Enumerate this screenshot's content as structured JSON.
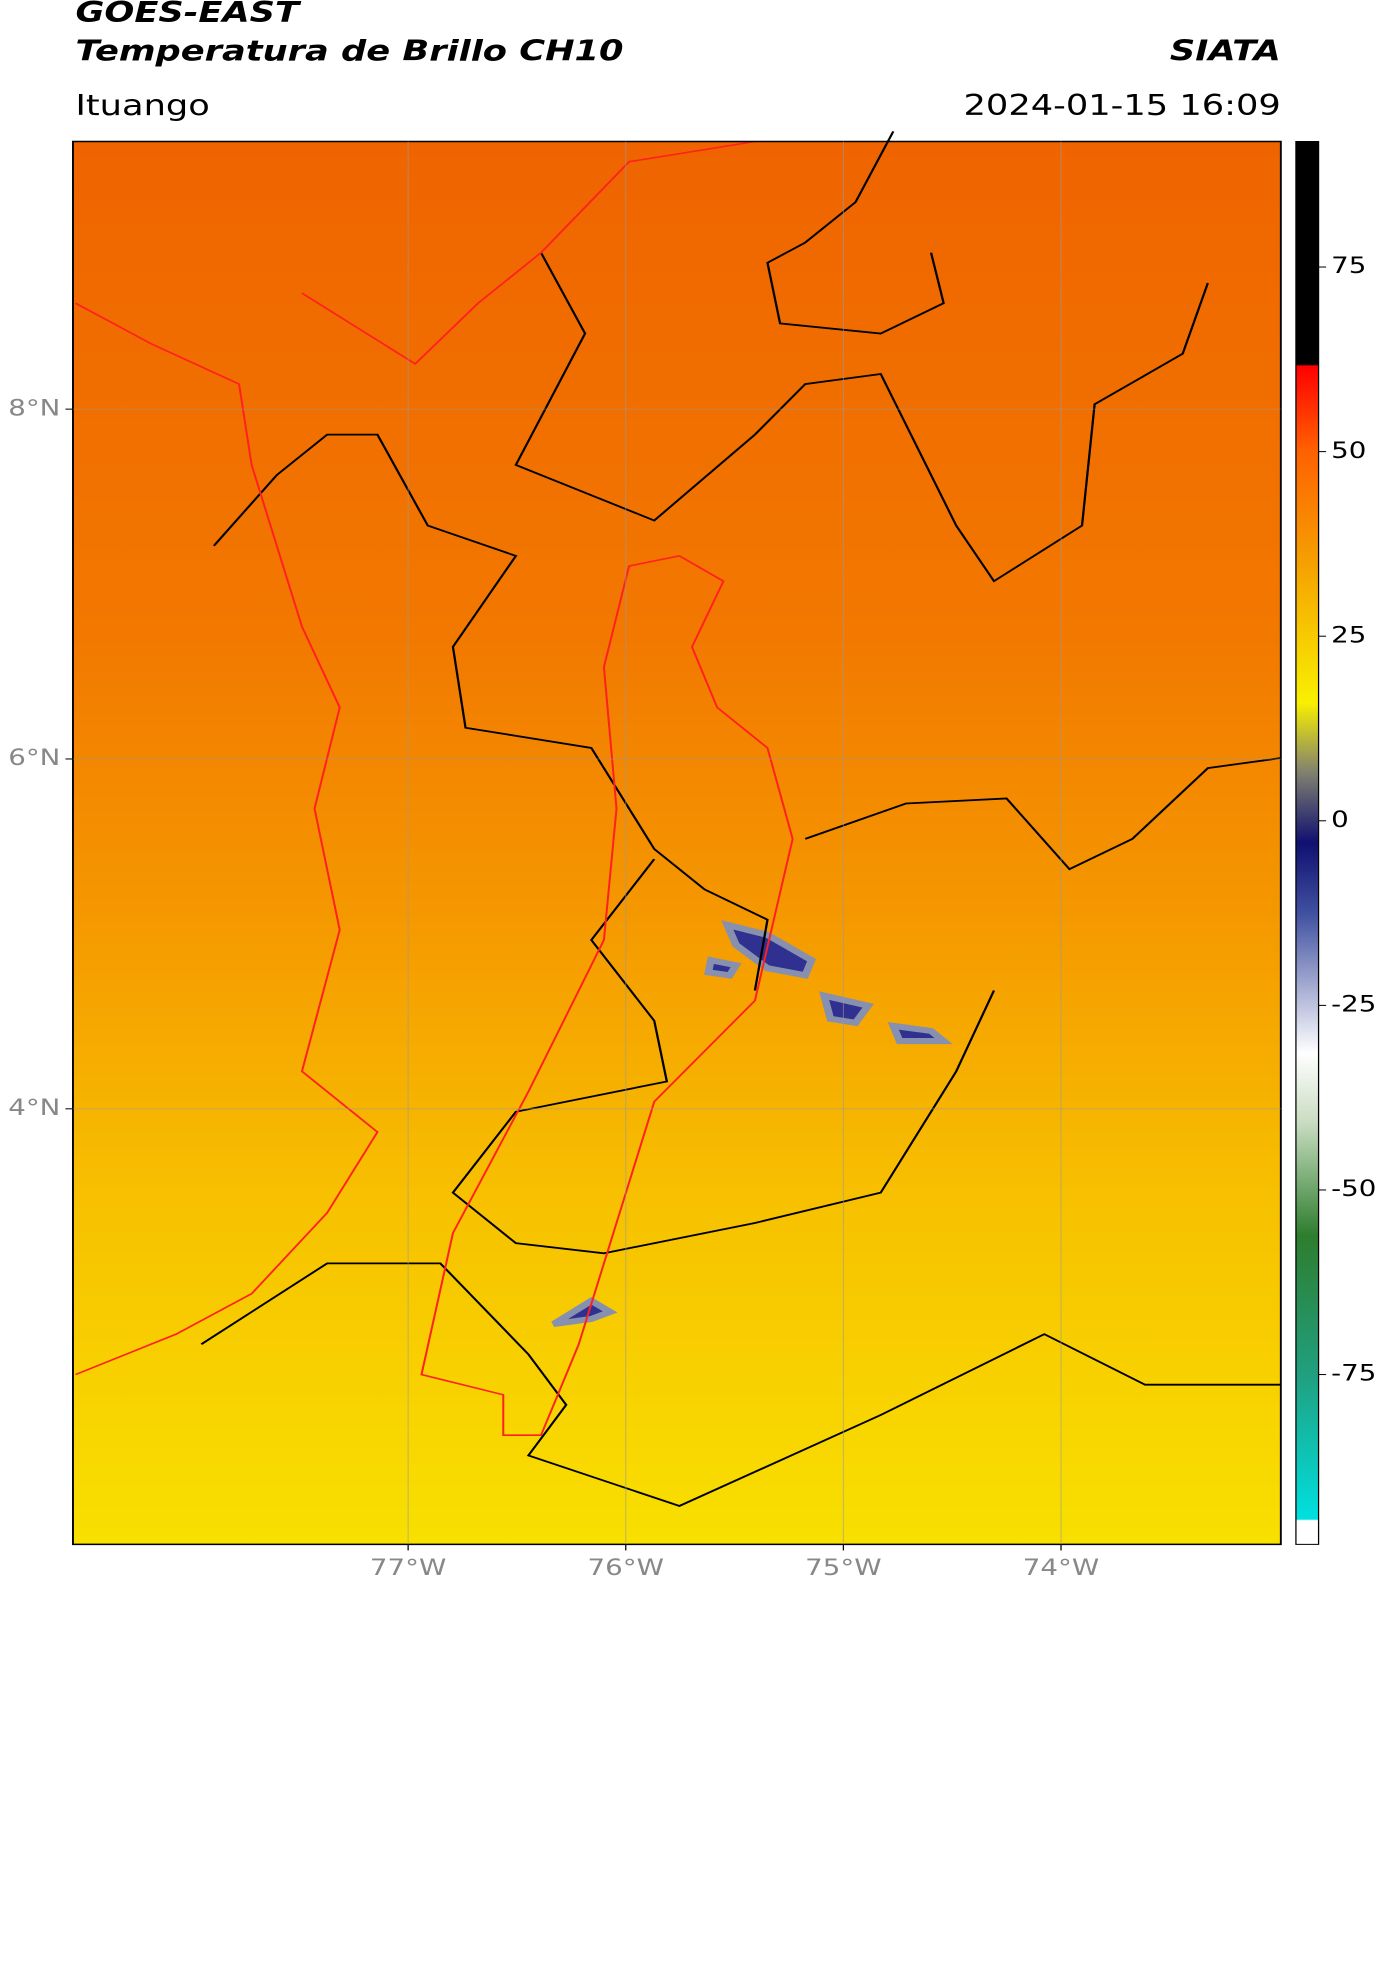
{
  "header": {
    "title": "GOES-EAST",
    "subtitle": "Temperatura de Brillo CH10",
    "source": "SIATA",
    "location": "Ituango",
    "datetime": "2024-01-15 16:09"
  },
  "map": {
    "lon_lim": [
      -78.54,
      -72.99
    ],
    "lat_lim": [
      1.51,
      9.53
    ],
    "lat_ticks": [
      {
        "value": 8,
        "label": "8°N"
      },
      {
        "value": 6,
        "label": "6°N"
      },
      {
        "value": 4,
        "label": "4°N"
      }
    ],
    "lon_ticks": [
      {
        "value": -77,
        "label": "77°W"
      },
      {
        "value": -76,
        "label": "76°W"
      },
      {
        "value": -75,
        "label": "75°W"
      },
      {
        "value": -74,
        "label": "74°W"
      }
    ],
    "grid": true
  },
  "colorbar": {
    "lim": [
      -98,
      92
    ],
    "ticks": [
      75,
      50,
      25,
      0,
      -25,
      -50,
      -75
    ]
  }
}
